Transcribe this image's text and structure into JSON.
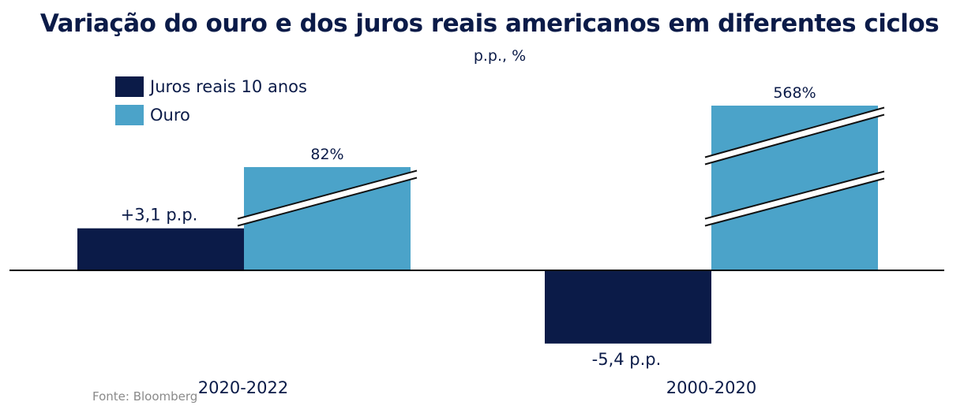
{
  "title": "Variação do ouro e dos juros reais americanos em diferentes ciclos",
  "subtitle": "p.p., %",
  "source": "Fonte: Bloomberg",
  "legend": [
    {
      "label": "Juros reais 10 anos",
      "color": "#0b1b48"
    },
    {
      "label": "Ouro",
      "color": "#4ba3c9"
    }
  ],
  "chart_data": {
    "type": "bar",
    "categories": [
      "2020-2022",
      "2000-2020"
    ],
    "series": [
      {
        "name": "Juros reais 10 anos",
        "values": [
          3.1,
          -5.4
        ],
        "labels": [
          "+3,1 p.p.",
          "-5,4 p.p."
        ],
        "color": "#0b1b48",
        "unit": "p.p."
      },
      {
        "name": "Ouro",
        "values": [
          82,
          568
        ],
        "labels": [
          "82%",
          "568%"
        ],
        "color": "#4ba3c9",
        "unit": "%",
        "axis_break": true
      }
    ],
    "grid": false,
    "legend_position": "top-left"
  }
}
